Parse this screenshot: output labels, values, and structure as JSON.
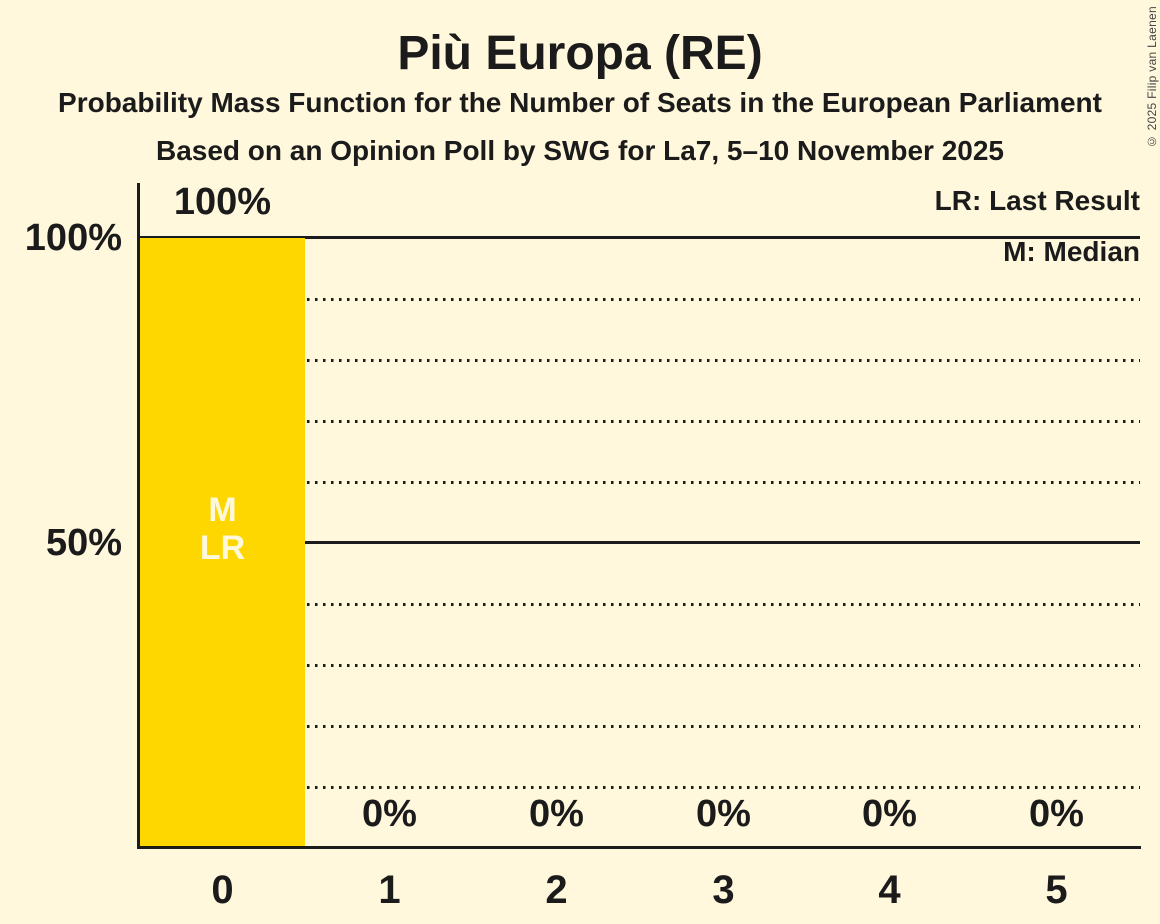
{
  "header": {
    "title": "Più Europa (RE)",
    "subtitle_line1": "Probability Mass Function for the Number of Seats in the European Parliament",
    "subtitle_line2": "Based on an Opinion Poll by SWG for La7, 5–10 November 2025",
    "copyright": "© 2025 Filip van Laenen"
  },
  "legend": {
    "lr_label": "LR: Last Result",
    "m_label": "M: Median"
  },
  "y_axis": {
    "tick_100": "100%",
    "tick_50": "50%"
  },
  "bar_annotations": {
    "median_label": "M",
    "last_result_label": "LR"
  },
  "chart_data": {
    "type": "bar",
    "title": "Più Europa (RE)",
    "subtitle": "Probability Mass Function for the Number of Seats in the European Parliament",
    "poll_info": "Based on an Opinion Poll by SWG for La7, 5–10 November 2025",
    "categories": [
      "0",
      "1",
      "2",
      "3",
      "4",
      "5"
    ],
    "values": [
      100,
      0,
      0,
      0,
      0,
      0
    ],
    "value_labels": [
      "100%",
      "0%",
      "0%",
      "0%",
      "0%",
      "0%"
    ],
    "ylim": [
      0,
      100
    ],
    "ytick_labels": [
      {
        "value": 100,
        "label": "100%"
      },
      {
        "value": 50,
        "label": "50%"
      }
    ],
    "gridlines": {
      "dotted_interval_pct": 10,
      "solid_at_pct": [
        50,
        100
      ]
    },
    "legend_entries": [
      "LR: Last Result",
      "M: Median"
    ],
    "median_category": "0",
    "last_result_category": "0",
    "colors": {
      "bar": "#FFD700",
      "background": "#FFF8DC",
      "ink": "#1B1B1B"
    }
  }
}
